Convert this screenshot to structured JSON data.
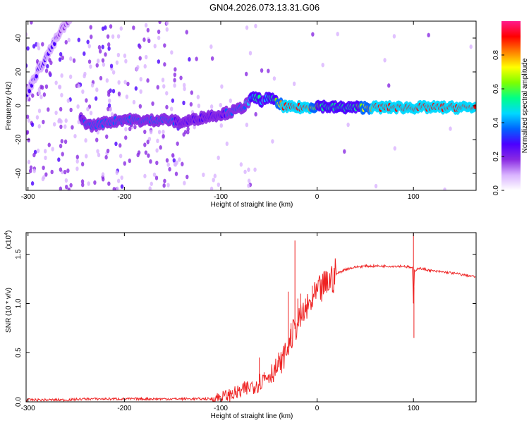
{
  "title": "GN04.2026.073.13.31.G06",
  "chart_data": [
    {
      "type": "heatmap",
      "title": "GN04.2026.073.13.31.G06",
      "xlabel": "Height of straight line (km)",
      "ylabel": "Frequency (Hz)",
      "xlim": [
        -302,
        165
      ],
      "ylim": [
        -50,
        50
      ],
      "xticks": [
        -300,
        -200,
        -100,
        0,
        100
      ],
      "yticks": [
        40,
        20,
        0,
        -20,
        -40
      ],
      "colorbar": {
        "label": "Normalized spectral amplitude",
        "range": [
          0.0,
          1.0
        ],
        "ticks": [
          "0.0",
          "0.2",
          "0.4",
          "0.6",
          "0.8"
        ],
        "colors": [
          "#ffffff",
          "#d9b3ff",
          "#8a2be2",
          "#4b00ff",
          "#0064ff",
          "#00d8ff",
          "#00ff88",
          "#7dff00",
          "#ffff00",
          "#ff8000",
          "#ff0000",
          "#ff1a8c"
        ]
      },
      "ridge": {
        "x": [
          -302,
          -295,
          -285,
          -275,
          -265,
          -255,
          -245,
          -235,
          -220,
          -200,
          -180,
          -160,
          -140,
          -120,
          -100,
          -85,
          -75,
          -70,
          -65,
          -60,
          -55,
          -50,
          -45,
          -40,
          -35,
          -30,
          -20,
          -10,
          0,
          20,
          40,
          60,
          80,
          100,
          120,
          140,
          165
        ],
        "y": [
          5,
          15,
          25,
          35,
          45,
          52,
          -8,
          -12,
          -10,
          -8,
          -9,
          -8,
          -10,
          -7,
          -5,
          -3,
          0,
          3,
          5,
          4,
          2,
          6,
          3,
          1,
          0,
          -1,
          -1,
          -1,
          0,
          -1,
          -1,
          -1,
          -1,
          -1,
          -1,
          -1,
          -1
        ],
        "amplitude": [
          0.25,
          0.25,
          0.25,
          0.25,
          0.2,
          0.1,
          0.3,
          0.35,
          0.35,
          0.4,
          0.35,
          0.35,
          0.3,
          0.3,
          0.3,
          0.35,
          0.4,
          0.45,
          0.5,
          0.5,
          0.45,
          0.5,
          0.5,
          0.7,
          0.9,
          0.9,
          0.9,
          0.9,
          0.6,
          0.55,
          0.55,
          0.9,
          0.9,
          0.9,
          0.9,
          0.95,
          0.95
        ]
      }
    },
    {
      "type": "line",
      "xlabel": "Height of straight line (km)",
      "ylabel": "SNR (10 * v/v)",
      "y_scale_label": "(x10",
      "y_scale_exp": "4",
      "y_scale_suffix": ")",
      "xlim": [
        -302,
        165
      ],
      "ylim": [
        0.0,
        1.72
      ],
      "xticks": [
        -300,
        -200,
        -100,
        0,
        100
      ],
      "yticks": [
        0.0,
        0.5,
        1.0,
        1.5
      ],
      "ytick_labels": [
        "0.0",
        "0.5",
        "1.0",
        "1.5"
      ],
      "color": "#ee2222",
      "series": [
        {
          "name": "SNR",
          "x": [
            -302,
            -280,
            -260,
            -240,
            -220,
            -200,
            -180,
            -160,
            -140,
            -120,
            -110,
            -100,
            -90,
            -80,
            -70,
            -60,
            -50,
            -40,
            -35,
            -30,
            -25,
            -20,
            -15,
            -10,
            -5,
            0,
            10,
            20,
            30,
            40,
            50,
            60,
            80,
            90,
            95,
            99,
            100,
            101,
            105,
            110,
            120,
            140,
            165
          ],
          "y": [
            0.02,
            0.02,
            0.02,
            0.03,
            0.03,
            0.03,
            0.03,
            0.03,
            0.03,
            0.03,
            0.03,
            0.05,
            0.07,
            0.1,
            0.15,
            0.2,
            0.28,
            0.35,
            0.45,
            0.55,
            0.7,
            0.8,
            0.88,
            0.95,
            1.02,
            1.1,
            1.2,
            1.3,
            1.35,
            1.37,
            1.38,
            1.38,
            1.38,
            1.38,
            1.37,
            1.36,
            1.0,
            1.33,
            1.36,
            1.35,
            1.33,
            1.31,
            1.27
          ]
        }
      ],
      "spikes": [
        {
          "x": -88,
          "y": 0.12
        },
        {
          "x": -60,
          "y": 0.45
        },
        {
          "x": -55,
          "y": 0.3
        },
        {
          "x": -40,
          "y": 0.5
        },
        {
          "x": -30,
          "y": 1.12
        },
        {
          "x": -27,
          "y": 0.8
        },
        {
          "x": -23,
          "y": 1.64
        },
        {
          "x": -20,
          "y": 1.05
        },
        {
          "x": -17,
          "y": 1.1
        },
        {
          "x": -12,
          "y": 1.05
        },
        {
          "x": -5,
          "y": 1.18
        },
        {
          "x": 100,
          "y": 1.72
        },
        {
          "x": 100.5,
          "y": 0.65
        }
      ]
    }
  ]
}
